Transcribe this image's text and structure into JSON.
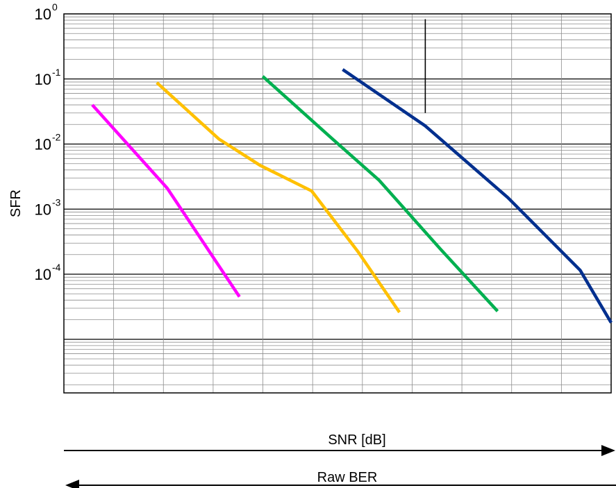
{
  "chart_data": {
    "type": "line",
    "title": "",
    "xlabel": "SNR [dB]",
    "ylabel": "SFR",
    "secondary_xlabel": "Raw BER",
    "x_axis_ticks": "unlabeled",
    "xlim": [
      0,
      10.6
    ],
    "ylim": [
      1.5e-06,
      1
    ],
    "yscale": "log",
    "yticks": [
      {
        "base": "10",
        "exp": "0"
      },
      {
        "base": "10",
        "exp": "-1"
      },
      {
        "base": "10",
        "exp": "-2"
      },
      {
        "base": "10",
        "exp": "-3"
      },
      {
        "base": "10",
        "exp": "-4"
      }
    ],
    "grid": true,
    "legend": "none",
    "series": [
      {
        "color": "#ff00ff",
        "points": [
          [
            0.55,
            0.04
          ],
          [
            2.0,
            0.0021
          ],
          [
            3.4,
            4.5e-05
          ]
        ]
      },
      {
        "color": "#ffc000",
        "points": [
          [
            1.8,
            0.088
          ],
          [
            3.0,
            0.012
          ],
          [
            3.8,
            0.0047
          ],
          [
            4.8,
            0.0019
          ],
          [
            5.7,
            0.00022
          ],
          [
            6.5,
            2.6e-05
          ]
        ]
      },
      {
        "color": "#00b050",
        "points": [
          [
            3.85,
            0.11
          ],
          [
            5.2,
            0.012
          ],
          [
            6.1,
            0.0028
          ],
          [
            7.3,
            0.00024
          ],
          [
            8.4,
            2.7e-05
          ]
        ]
      },
      {
        "color": "#002f8e",
        "points": [
          [
            5.4,
            0.14
          ],
          [
            7.0,
            0.019
          ],
          [
            8.6,
            0.0015
          ],
          [
            10.0,
            0.000115
          ],
          [
            10.6,
            1.8e-05
          ]
        ]
      }
    ],
    "annotations": [
      {
        "type": "vertical-line",
        "x": 7.0,
        "y_from": 0.03,
        "y_to": 0.83,
        "color": "#000000"
      }
    ],
    "arrows": [
      {
        "label": "SNR [dB]",
        "direction": "right"
      },
      {
        "label": "Raw BER",
        "direction": "left"
      }
    ]
  }
}
